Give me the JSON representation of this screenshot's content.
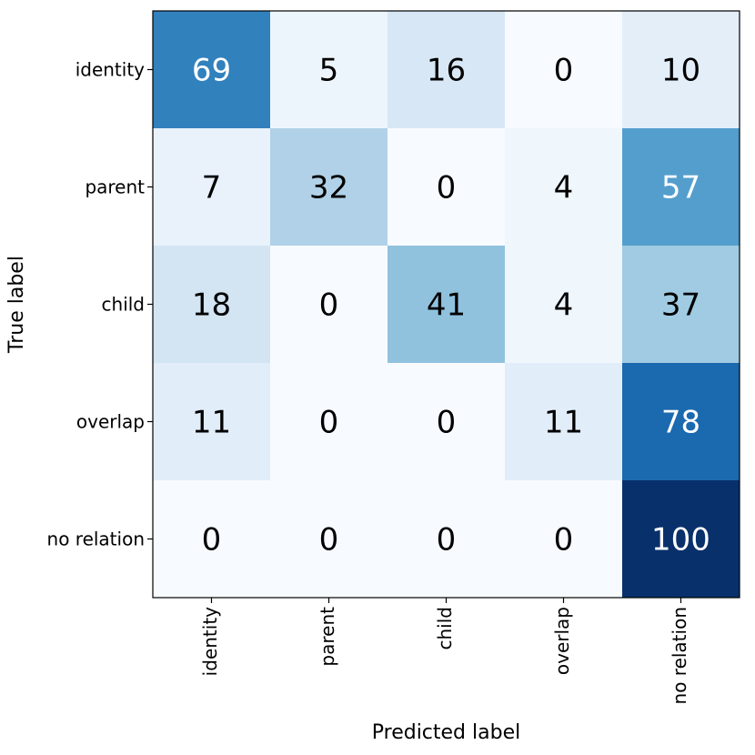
{
  "chart_data": {
    "type": "heatmap",
    "xlabel": "Predicted label",
    "ylabel": "True label",
    "x_categories": [
      "identity",
      "parent",
      "child",
      "overlap",
      "no relation"
    ],
    "y_categories": [
      "identity",
      "parent",
      "child",
      "overlap",
      "no relation"
    ],
    "values": [
      [
        69,
        5,
        16,
        0,
        10
      ],
      [
        7,
        32,
        0,
        4,
        57
      ],
      [
        18,
        0,
        41,
        4,
        37
      ],
      [
        11,
        0,
        0,
        11,
        78
      ],
      [
        0,
        0,
        0,
        0,
        100
      ]
    ],
    "value_range": [
      0,
      100
    ],
    "colormap": "Blues",
    "low_color": "#f7fbff",
    "high_color": "#08306b",
    "text_color_dark": "#000000",
    "text_color_light": "#ffffff"
  }
}
